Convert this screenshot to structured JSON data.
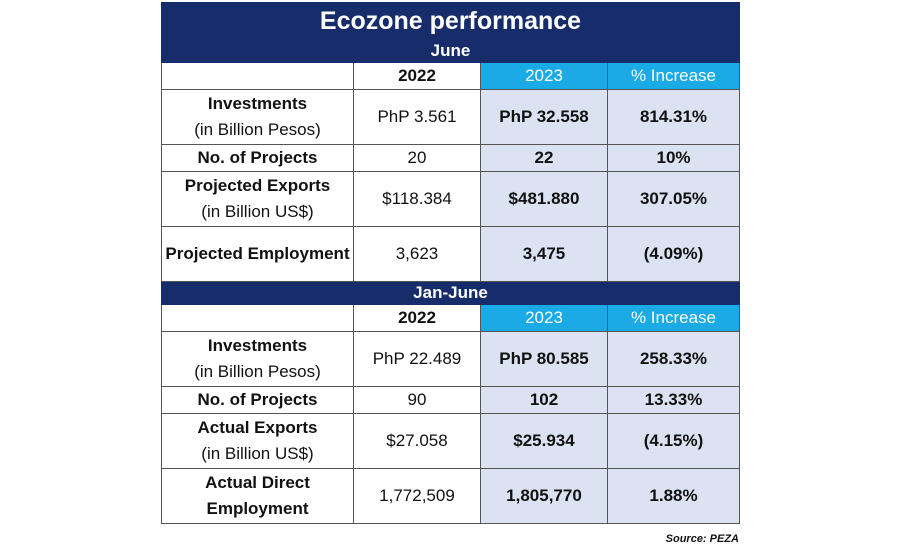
{
  "title": "Ecozone performance",
  "colors": {
    "navy": "#172d6b",
    "accent": "#1aabe6",
    "shade": "#dbe3f2"
  },
  "chart_data": [
    {
      "type": "table",
      "section": "June",
      "columns": [
        "",
        "2022",
        "2023",
        "% Increase"
      ],
      "rows": [
        {
          "label": "Investments",
          "sublabel": "(in Billion Pesos)",
          "v2022": "PhP 3.561",
          "v2023": "PhP 32.558",
          "increase": "814.31%"
        },
        {
          "label": "No. of Projects",
          "sublabel": "",
          "v2022": "20",
          "v2023": "22",
          "increase": "10%"
        },
        {
          "label": "Projected Exports",
          "sublabel": "(in Billion US$)",
          "v2022": "$118.384",
          "v2023": "$481.880",
          "increase": "307.05%"
        },
        {
          "label": "Projected Employment",
          "sublabel": "",
          "v2022": "3,623",
          "v2023": "3,475",
          "increase": "(4.09%)"
        }
      ]
    },
    {
      "type": "table",
      "section": "Jan-June",
      "columns": [
        "",
        "2022",
        "2023",
        "% Increase"
      ],
      "rows": [
        {
          "label": "Investments",
          "sublabel": "(in Billion Pesos)",
          "v2022": "PhP 22.489",
          "v2023": "PhP 80.585",
          "increase": "258.33%"
        },
        {
          "label": "No. of Projects",
          "sublabel": "",
          "v2022": "90",
          "v2023": "102",
          "increase": "13.33%"
        },
        {
          "label": "Actual Exports",
          "sublabel": "(in Billion US$)",
          "v2022": "$27.058",
          "v2023": "$25.934",
          "increase": "(4.15%)"
        },
        {
          "label": "Actual Direct Employment",
          "sublabel": "",
          "v2022": "1,772,509",
          "v2023": "1,805,770",
          "increase": "1.88%"
        }
      ]
    }
  ],
  "source": "Source: PEZA"
}
